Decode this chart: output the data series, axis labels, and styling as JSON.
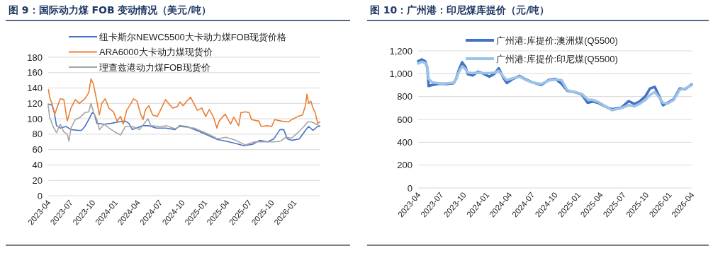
{
  "chart_data": [
    {
      "type": "line",
      "title": "图 9：国际动力煤 FOB 变动情况（美元/吨）",
      "xlim": [
        "2023-04-01",
        "2026-04-18"
      ],
      "xticks": [
        "2023-04",
        "2023-07",
        "2023-10",
        "2024-01",
        "2024-04",
        "2024-07",
        "2024-10",
        "2025-01",
        "2025-04",
        "2025-07",
        "2025-10",
        "2026-01"
      ],
      "ylim": [
        0,
        180
      ],
      "yticks": [
        0,
        20,
        40,
        60,
        80,
        100,
        120,
        140,
        160,
        180
      ],
      "grid": "y",
      "legend": "top",
      "marker": "none",
      "line_style": "solid",
      "series": [
        {
          "name": "纽卡斯尔NEWC5500大卡动力煤FOB现货价格",
          "color": "#4472c4",
          "x": [
            "2023-04-01",
            "2023-04-16",
            "2023-04-26",
            "2023-05-05",
            "2023-05-20",
            "2023-06-13",
            "2023-07-03",
            "2023-08-01",
            "2023-08-15",
            "2023-08-29",
            "2023-09-14",
            "2023-09-28",
            "2023-10-07",
            "2023-10-17",
            "2023-11-16",
            "2023-12-14",
            "2024-01-13",
            "2024-02-11",
            "2024-02-25",
            "2024-03-10",
            "2024-03-28",
            "2024-04-19",
            "2024-05-16",
            "2024-06-16",
            "2024-07-24",
            "2024-09-01",
            "2024-09-20",
            "2024-10-19",
            "2024-11-28",
            "2025-01-04",
            "2025-02-22",
            "2025-03-28",
            "2025-05-07",
            "2025-06-10",
            "2025-07-16",
            "2025-08-13",
            "2025-09-13",
            "2025-10-10",
            "2025-11-04",
            "2025-11-19",
            "2025-12-04",
            "2025-12-22",
            "2026-01-22",
            "2026-02-16",
            "2026-03-01",
            "2026-03-19",
            "2026-04-07",
            "2026-04-16"
          ],
          "values": [
            119,
            118,
            108,
            91,
            88,
            90,
            86,
            85,
            85,
            90,
            99,
            108,
            106,
            94,
            93,
            94,
            96,
            97,
            94,
            86,
            88,
            91,
            91,
            88,
            88,
            86,
            91,
            90,
            85,
            80,
            73,
            71,
            68,
            65,
            67,
            72,
            70,
            74,
            86,
            86,
            74,
            72,
            74,
            85,
            90,
            85,
            90,
            90
          ]
        },
        {
          "name": "ARA6000大卡动力煤现货价",
          "color": "#ed7d31",
          "x": [
            "2023-04-02",
            "2023-04-07",
            "2023-04-16",
            "2023-04-28",
            "2023-05-10",
            "2023-05-20",
            "2023-06-04",
            "2023-06-18",
            "2023-07-03",
            "2023-07-21",
            "2023-08-06",
            "2023-08-29",
            "2023-09-14",
            "2023-09-23",
            "2023-10-03",
            "2023-10-17",
            "2023-10-27",
            "2023-11-06",
            "2023-11-20",
            "2023-12-05",
            "2023-12-24",
            "2024-01-08",
            "2024-01-22",
            "2024-02-02",
            "2024-02-16",
            "2024-02-28",
            "2024-03-15",
            "2024-03-29",
            "2024-04-13",
            "2024-04-23",
            "2024-05-03",
            "2024-05-17",
            "2024-06-01",
            "2024-06-20",
            "2024-07-04",
            "2024-07-24",
            "2024-08-08",
            "2024-08-22",
            "2024-09-11",
            "2024-09-20",
            "2024-10-04",
            "2024-10-19",
            "2024-11-03",
            "2024-11-18",
            "2024-12-01",
            "2024-12-19",
            "2025-01-04",
            "2025-01-19",
            "2025-02-04",
            "2025-02-19",
            "2025-02-28",
            "2025-03-16",
            "2025-03-25",
            "2025-04-16",
            "2025-04-29",
            "2025-05-19",
            "2025-05-28",
            "2025-06-16",
            "2025-07-01",
            "2025-07-10",
            "2025-08-10",
            "2025-08-19",
            "2025-09-13",
            "2025-10-01",
            "2025-10-13",
            "2025-11-10",
            "2025-12-10",
            "2025-12-22",
            "2026-01-16",
            "2026-02-04",
            "2026-02-16",
            "2026-02-22",
            "2026-03-01",
            "2026-03-10",
            "2026-03-19",
            "2026-03-28",
            "2026-04-07",
            "2026-04-16"
          ],
          "values": [
            138,
            128,
            120,
            106,
            117,
            126,
            125,
            97,
            114,
            125,
            120,
            126,
            134,
            152,
            145,
            123,
            105,
            120,
            126,
            114,
            109,
            97,
            103,
            93,
            111,
            117,
            126,
            123,
            106,
            99,
            112,
            117,
            105,
            103,
            112,
            125,
            119,
            114,
            116,
            122,
            117,
            123,
            128,
            119,
            111,
            114,
            103,
            112,
            103,
            88,
            97,
            103,
            106,
            93,
            102,
            91,
            108,
            109,
            108,
            99,
            97,
            90,
            91,
            90,
            99,
            97,
            96,
            99,
            103,
            105,
            117,
            132,
            120,
            123,
            114,
            108,
            94,
            96
          ]
        },
        {
          "name": "理查兹港动力煤FOB现货价",
          "color": "#a5a5a5",
          "x": [
            "2023-04-01",
            "2023-04-07",
            "2023-04-21",
            "2023-05-05",
            "2023-05-20",
            "2023-06-04",
            "2023-06-18",
            "2023-06-25",
            "2023-07-03",
            "2023-07-21",
            "2023-08-10",
            "2023-08-29",
            "2023-09-14",
            "2023-09-23",
            "2023-10-03",
            "2023-10-17",
            "2023-10-27",
            "2023-11-16",
            "2023-12-05",
            "2024-01-04",
            "2024-01-22",
            "2024-02-11",
            "2024-03-10",
            "2024-04-09",
            "2024-04-28",
            "2024-05-13",
            "2024-05-25",
            "2024-07-04",
            "2024-07-28",
            "2024-09-01",
            "2024-09-20",
            "2024-11-18",
            "2025-01-16",
            "2025-02-22",
            "2025-03-28",
            "2025-05-07",
            "2025-06-16",
            "2025-07-22",
            "2025-09-01",
            "2025-10-10",
            "2025-11-07",
            "2025-11-28",
            "2025-12-22",
            "2026-01-16",
            "2026-02-10",
            "2026-02-25",
            "2026-03-13",
            "2026-04-01",
            "2026-04-16"
          ],
          "values": [
            117,
            102,
            90,
            82,
            93,
            83,
            80,
            71,
            88,
            99,
            102,
            108,
            109,
            120,
            109,
            99,
            86,
            93,
            88,
            82,
            79,
            90,
            90,
            86,
            94,
            100,
            91,
            90,
            91,
            87,
            90,
            88,
            80,
            74,
            76,
            72,
            66,
            70,
            70,
            70,
            71,
            76,
            75,
            82,
            90,
            96,
            96,
            93,
            91
          ]
        }
      ]
    },
    {
      "type": "line",
      "title": "图 10：广州港：印尼煤库提价（元/吨）",
      "xlim": [
        "2023-04",
        "2026-04"
      ],
      "xticks": [
        "2023-04",
        "2023-07",
        "2023-10",
        "2024-01",
        "2024-04",
        "2024-07",
        "2024-10",
        "2025-01",
        "2025-04",
        "2025-07",
        "2025-10",
        "2026-01",
        "2026-04"
      ],
      "ylim": [
        0,
        1200
      ],
      "yticks": [
        0,
        200,
        400,
        600,
        800,
        {
          "value": 1000,
          "label": "1,000"
        },
        {
          "value": 1200,
          "label": "1,200"
        }
      ],
      "grid": "y",
      "legend": "top",
      "marker": "none",
      "line_style": "solid",
      "series": [
        {
          "name": "广州港:库提价:澳洲煤(Q5500)",
          "color": "#4472c4",
          "x": [
            "2023-04-01",
            "2023-04-15",
            "2023-04-29",
            "2023-05-08",
            "2023-05-13",
            "2023-05-27",
            "2023-06-25",
            "2023-07-23",
            "2023-08-21",
            "2023-08-31",
            "2023-09-10",
            "2023-09-24",
            "2023-10-08",
            "2023-10-17",
            "2023-11-06",
            "2023-11-25",
            "2023-12-13",
            "2024-01-11",
            "2024-01-30",
            "2024-02-18",
            "2024-03-07",
            "2024-03-21",
            "2024-04-14",
            "2024-05-12",
            "2024-06-01",
            "2024-06-29",
            "2024-08-06",
            "2024-09-04",
            "2024-10-02",
            "2024-10-26",
            "2024-11-19",
            "2024-12-17",
            "2025-01-15",
            "2025-02-08",
            "2025-03-01",
            "2025-03-21",
            "2025-04-28",
            "2025-05-16",
            "2025-06-24",
            "2025-07-22",
            "2025-08-15",
            "2025-09-03",
            "2025-09-27",
            "2025-10-16",
            "2025-11-04",
            "2025-11-23",
            "2025-12-07",
            "2025-12-26",
            "2026-01-19",
            "2026-02-12",
            "2026-03-06",
            "2026-04-01"
          ],
          "values": [
            1110,
            1125,
            1110,
            1048,
            892,
            902,
            912,
            910,
            918,
            954,
            1027,
            1100,
            1058,
            996,
            985,
            1017,
            1006,
            975,
            996,
            1048,
            965,
            919,
            954,
            981,
            954,
            927,
            902,
            944,
            954,
            913,
            850,
            840,
            819,
            746,
            756,
            746,
            704,
            690,
            704,
            760,
            735,
            756,
            802,
            871,
            885,
            798,
            725,
            746,
            777,
            871,
            865,
            906
          ]
        },
        {
          "name": "广州港:库提价:印尼煤(Q5500)",
          "color": "#9dc3e6",
          "x": [
            "2023-04-01",
            "2023-04-15",
            "2023-04-29",
            "2023-05-08",
            "2023-05-13",
            "2023-05-27",
            "2023-06-25",
            "2023-07-23",
            "2023-08-21",
            "2023-08-31",
            "2023-09-10",
            "2023-09-24",
            "2023-10-08",
            "2023-10-17",
            "2023-11-06",
            "2023-11-25",
            "2023-12-13",
            "2024-01-11",
            "2024-01-30",
            "2024-02-18",
            "2024-03-07",
            "2024-03-21",
            "2024-04-14",
            "2024-05-12",
            "2024-06-01",
            "2024-06-29",
            "2024-08-06",
            "2024-09-04",
            "2024-10-02",
            "2024-10-26",
            "2024-11-19",
            "2024-12-17",
            "2025-01-15",
            "2025-02-08",
            "2025-03-01",
            "2025-03-21",
            "2025-04-28",
            "2025-05-16",
            "2025-06-24",
            "2025-07-22",
            "2025-08-15",
            "2025-09-03",
            "2025-09-27",
            "2025-10-16",
            "2025-11-04",
            "2025-11-23",
            "2025-12-07",
            "2025-12-26",
            "2026-01-19",
            "2026-02-12",
            "2026-03-06",
            "2026-04-01"
          ],
          "values": [
            1090,
            1105,
            1095,
            1050,
            954,
            925,
            915,
            915,
            922,
            950,
            1010,
            1065,
            1040,
            1010,
            1005,
            1010,
            1005,
            1005,
            1010,
            1025,
            975,
            945,
            960,
            975,
            950,
            925,
            910,
            940,
            948,
            945,
            855,
            840,
            825,
            775,
            770,
            755,
            705,
            680,
            700,
            725,
            715,
            735,
            770,
            815,
            840,
            790,
            745,
            740,
            770,
            860,
            870,
            900
          ]
        }
      ]
    }
  ]
}
